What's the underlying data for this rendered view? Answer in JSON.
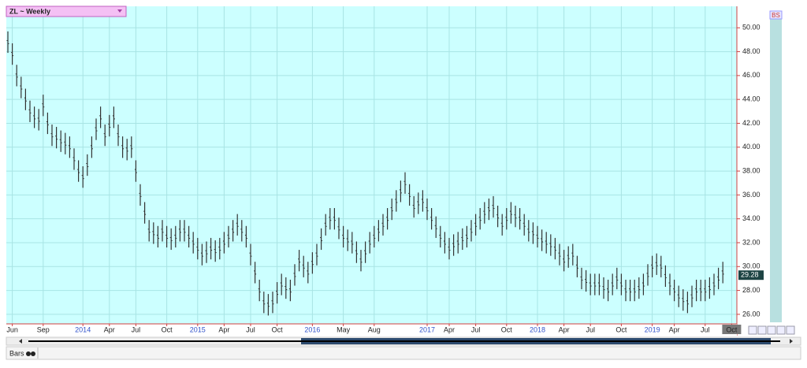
{
  "chart_data": {
    "type": "ohlc",
    "title": "ZL ~ Weekly",
    "legend_marker": "BS",
    "footer_label": "Bars",
    "last_price": 29.28,
    "last_price_label": "29.28",
    "color": "#333333",
    "grid": true,
    "ylim": [
      25.2,
      51.8
    ],
    "yticks": [
      {
        "value": 26,
        "label": "26.00"
      },
      {
        "value": 28,
        "label": "28.00"
      },
      {
        "value": 30,
        "label": "30.00"
      },
      {
        "value": 32,
        "label": "32.00"
      },
      {
        "value": 34,
        "label": "34.00"
      },
      {
        "value": 36,
        "label": "36.00"
      },
      {
        "value": 38,
        "label": "38.00"
      },
      {
        "value": 40,
        "label": "40.00"
      },
      {
        "value": 42,
        "label": "42.00"
      },
      {
        "value": 44,
        "label": "44.00"
      },
      {
        "value": 46,
        "label": "46.00"
      },
      {
        "value": 48,
        "label": "48.00"
      },
      {
        "value": 50,
        "label": "50.00"
      }
    ],
    "categories": [
      null,
      "Jun",
      null,
      null,
      null,
      null,
      null,
      null,
      "Sep",
      null,
      null,
      null,
      null,
      null,
      null,
      null,
      null,
      "2014",
      null,
      null,
      null,
      null,
      null,
      "Apr",
      null,
      null,
      null,
      null,
      null,
      "Jul",
      null,
      null,
      null,
      null,
      null,
      null,
      "Oct",
      null,
      null,
      null,
      null,
      null,
      null,
      "2015",
      null,
      null,
      null,
      null,
      null,
      "Apr",
      null,
      null,
      null,
      null,
      null,
      "Jul",
      null,
      null,
      null,
      null,
      null,
      "Oct",
      null,
      null,
      null,
      null,
      null,
      null,
      null,
      "2016",
      null,
      null,
      null,
      null,
      null,
      null,
      "May",
      null,
      null,
      null,
      null,
      null,
      null,
      "Aug",
      null,
      null,
      null,
      null,
      null,
      null,
      null,
      null,
      null,
      null,
      null,
      "2017",
      null,
      null,
      null,
      null,
      "Apr",
      null,
      null,
      null,
      null,
      null,
      "Jul",
      null,
      null,
      null,
      null,
      null,
      null,
      "Oct",
      null,
      null,
      null,
      null,
      null,
      null,
      "2018",
      null,
      null,
      null,
      null,
      null,
      "Apr",
      null,
      null,
      null,
      null,
      null,
      "Jul",
      null,
      null,
      null,
      null,
      null,
      null,
      "Oct",
      null,
      null,
      null,
      null,
      null,
      null,
      "2019",
      null,
      null,
      null,
      null,
      "Apr",
      null,
      null,
      null,
      null,
      null,
      null,
      "Jul",
      null,
      null,
      null,
      null,
      null,
      "Oct"
    ],
    "series": [
      {
        "name": "High",
        "values": [
          49.7,
          48.7,
          46.9,
          45.9,
          44.9,
          43.9,
          43.4,
          43.2,
          44.4,
          42.9,
          41.9,
          41.7,
          41.4,
          41.2,
          40.9,
          39.9,
          38.9,
          38.4,
          39.4,
          40.9,
          42.4,
          43.4,
          41.9,
          42.7,
          43.4,
          41.9,
          40.9,
          40.7,
          40.9,
          38.9,
          36.9,
          35.4,
          33.9,
          33.7,
          33.4,
          33.9,
          33.4,
          33.2,
          33.4,
          33.9,
          33.9,
          33.4,
          32.9,
          32.4,
          31.9,
          32.1,
          32.4,
          32.2,
          32.4,
          32.9,
          33.4,
          33.9,
          34.4,
          33.9,
          33.4,
          31.9,
          30.4,
          28.9,
          27.9,
          27.7,
          27.9,
          28.7,
          29.4,
          29.1,
          28.9,
          30.2,
          31.4,
          30.9,
          30.4,
          31.2,
          31.9,
          33.2,
          34.4,
          34.9,
          34.9,
          34.1,
          33.4,
          33.1,
          32.9,
          32.1,
          31.4,
          32.1,
          32.9,
          33.4,
          33.9,
          34.4,
          34.9,
          35.7,
          36.4,
          37.2,
          37.9,
          36.9,
          35.9,
          36.2,
          36.4,
          35.7,
          34.9,
          34.2,
          33.4,
          32.9,
          32.4,
          32.7,
          32.9,
          33.2,
          33.4,
          33.9,
          34.4,
          34.9,
          35.4,
          35.7,
          35.9,
          35.1,
          34.4,
          34.9,
          35.4,
          35.1,
          34.9,
          34.4,
          33.9,
          33.7,
          33.4,
          33.1,
          32.9,
          32.7,
          32.4,
          31.9,
          31.4,
          31.7,
          31.9,
          30.9,
          29.9,
          29.7,
          29.4,
          29.4,
          29.4,
          29.1,
          28.9,
          29.4,
          29.9,
          29.4,
          28.9,
          28.9,
          28.9,
          29.1,
          29.4,
          30.2,
          30.9,
          31.1,
          30.9,
          30.1,
          29.4,
          28.9,
          28.4,
          28.1,
          27.9,
          28.4,
          28.9,
          28.9,
          28.9,
          29.1,
          29.4,
          29.9,
          30.4,
          null,
          null
        ]
      },
      {
        "name": "Low",
        "values": [
          47.9,
          46.9,
          45.1,
          44.1,
          43.1,
          42.1,
          41.6,
          41.4,
          42.6,
          41.1,
          40.1,
          39.9,
          39.6,
          39.4,
          39.1,
          38.1,
          37.1,
          36.6,
          37.6,
          39.1,
          40.6,
          41.6,
          40.1,
          40.9,
          41.6,
          40.1,
          39.1,
          38.9,
          39.1,
          37.1,
          35.1,
          33.6,
          32.1,
          31.9,
          31.6,
          32.1,
          31.6,
          31.4,
          31.6,
          32.1,
          32.1,
          31.6,
          31.1,
          30.6,
          30.1,
          30.3,
          30.6,
          30.4,
          30.6,
          31.1,
          31.6,
          32.1,
          32.6,
          32.1,
          31.6,
          30.1,
          28.6,
          27.1,
          26.1,
          25.9,
          26.1,
          26.9,
          27.6,
          27.3,
          27.1,
          28.4,
          29.6,
          29.1,
          28.6,
          29.4,
          30.1,
          31.4,
          32.6,
          33.1,
          33.1,
          32.3,
          31.6,
          31.3,
          31.1,
          30.3,
          29.6,
          30.3,
          31.1,
          31.6,
          32.1,
          32.6,
          33.1,
          33.9,
          34.6,
          35.4,
          36.1,
          35.1,
          34.1,
          34.4,
          34.6,
          33.9,
          33.1,
          32.4,
          31.6,
          31.1,
          30.6,
          30.9,
          31.1,
          31.4,
          31.6,
          32.1,
          32.6,
          33.1,
          33.6,
          33.9,
          34.1,
          33.3,
          32.6,
          33.1,
          33.6,
          33.3,
          33.1,
          32.6,
          32.1,
          31.9,
          31.6,
          31.3,
          31.1,
          30.9,
          30.6,
          30.1,
          29.6,
          29.9,
          30.1,
          29.1,
          28.1,
          27.9,
          27.6,
          27.6,
          27.6,
          27.3,
          27.1,
          27.6,
          28.1,
          27.6,
          27.1,
          27.1,
          27.1,
          27.3,
          27.6,
          28.4,
          29.1,
          29.3,
          29.1,
          28.3,
          27.6,
          27.1,
          26.6,
          26.3,
          26.1,
          26.6,
          27.1,
          27.1,
          27.1,
          27.3,
          27.6,
          28.1,
          28.6,
          null,
          null
        ]
      }
    ]
  }
}
